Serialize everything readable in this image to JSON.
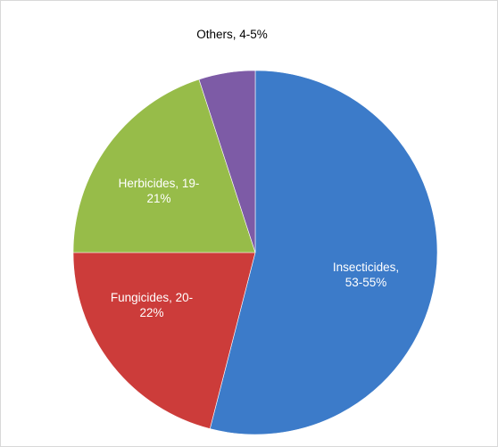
{
  "chart_data": {
    "type": "pie",
    "title": "",
    "start_angle_deg": 0,
    "direction": "clockwise",
    "slices": [
      {
        "label": "Insecticides,",
        "label2": "53-55%",
        "value": 54,
        "color": "#3c7bc9",
        "label_color": "#ffffff"
      },
      {
        "label": "Fungicides, 20-",
        "label2": "22%",
        "value": 21,
        "color": "#cc3c3a",
        "label_color": "#ffffff"
      },
      {
        "label": "Herbicides, 19-",
        "label2": "21%",
        "value": 20,
        "color": "#97bc49",
        "label_color": "#ffffff"
      },
      {
        "label": "Others, 4-5%",
        "label2": "",
        "value": 5,
        "color": "#7d5ba6",
        "label_color": "#000000"
      }
    ]
  }
}
